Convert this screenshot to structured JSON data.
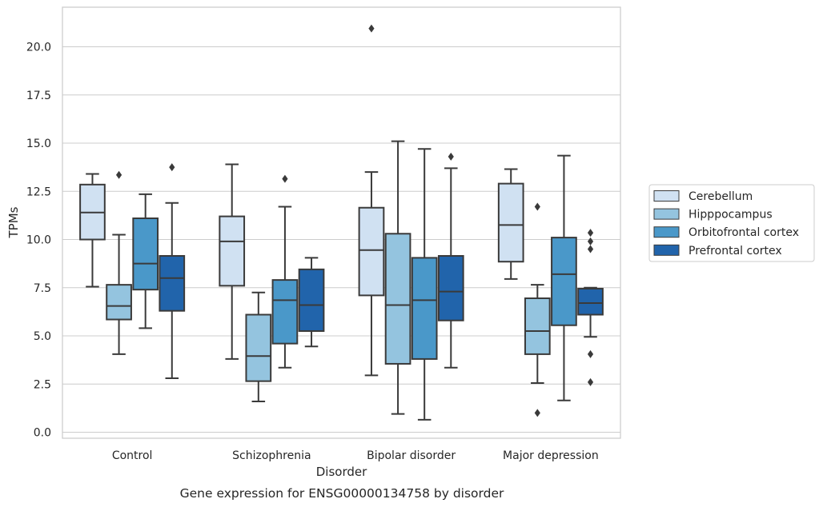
{
  "chart_data": {
    "type": "box",
    "title": "",
    "caption": "Gene expression for ENSG00000134758 by disorder",
    "xlabel": "Disorder",
    "ylabel": "TPMs",
    "ylim": [
      -0.3,
      22.0
    ],
    "yticks": [
      0.0,
      2.5,
      5.0,
      7.5,
      10.0,
      12.5,
      15.0,
      17.5,
      20.0
    ],
    "ytick_labels": [
      "0.0",
      "2.5",
      "5.0",
      "7.5",
      "10.0",
      "12.5",
      "15.0",
      "17.5",
      "20.0"
    ],
    "grid": true,
    "legend_position": "right",
    "categories": [
      "Control",
      "Schizophrenia",
      "Bipolar disorder",
      "Major depression"
    ],
    "series": [
      {
        "name": "Cerebellum",
        "color": "#d0e1f2",
        "boxes": [
          {
            "whisker_low": 7.55,
            "q1": 10.0,
            "median": 11.4,
            "q3": 12.85,
            "whisker_high": 13.4,
            "outliers": []
          },
          {
            "whisker_low": 3.8,
            "q1": 7.6,
            "median": 9.9,
            "q3": 11.2,
            "whisker_high": 13.9,
            "outliers": []
          },
          {
            "whisker_low": 2.95,
            "q1": 7.1,
            "median": 9.45,
            "q3": 11.65,
            "whisker_high": 13.5,
            "outliers": [
              20.95
            ]
          },
          {
            "whisker_low": 7.95,
            "q1": 8.85,
            "median": 10.75,
            "q3": 12.9,
            "whisker_high": 13.65,
            "outliers": []
          }
        ]
      },
      {
        "name": "Hipppocampus",
        "color": "#94c4df",
        "boxes": [
          {
            "whisker_low": 4.05,
            "q1": 5.85,
            "median": 6.55,
            "q3": 7.65,
            "whisker_high": 10.25,
            "outliers": [
              13.35
            ]
          },
          {
            "whisker_low": 1.6,
            "q1": 2.65,
            "median": 3.95,
            "q3": 6.1,
            "whisker_high": 7.25,
            "outliers": []
          },
          {
            "whisker_low": 0.95,
            "q1": 3.55,
            "median": 6.6,
            "q3": 10.3,
            "whisker_high": 15.1,
            "outliers": []
          },
          {
            "whisker_low": 2.55,
            "q1": 4.05,
            "median": 5.25,
            "q3": 6.95,
            "whisker_high": 7.65,
            "outliers": [
              11.7,
              1.0
            ]
          }
        ]
      },
      {
        "name": "Orbitofrontal cortex",
        "color": "#4a98c9",
        "boxes": [
          {
            "whisker_low": 5.4,
            "q1": 7.4,
            "median": 8.75,
            "q3": 11.1,
            "whisker_high": 12.35,
            "outliers": []
          },
          {
            "whisker_low": 3.35,
            "q1": 4.6,
            "median": 6.85,
            "q3": 7.9,
            "whisker_high": 11.7,
            "outliers": [
              13.15
            ]
          },
          {
            "whisker_low": 0.65,
            "q1": 3.8,
            "median": 6.85,
            "q3": 9.05,
            "whisker_high": 14.7,
            "outliers": []
          },
          {
            "whisker_low": 1.65,
            "q1": 5.55,
            "median": 8.2,
            "q3": 10.1,
            "whisker_high": 14.35,
            "outliers": []
          }
        ]
      },
      {
        "name": "Prefrontal cortex",
        "color": "#2164ab",
        "boxes": [
          {
            "whisker_low": 2.8,
            "q1": 6.3,
            "median": 8.0,
            "q3": 9.15,
            "whisker_high": 11.9,
            "outliers": [
              13.75
            ]
          },
          {
            "whisker_low": 4.45,
            "q1": 5.25,
            "median": 6.6,
            "q3": 8.45,
            "whisker_high": 9.05,
            "outliers": []
          },
          {
            "whisker_low": 3.35,
            "q1": 5.8,
            "median": 7.3,
            "q3": 9.15,
            "whisker_high": 13.7,
            "outliers": [
              14.3
            ]
          },
          {
            "whisker_low": 4.95,
            "q1": 6.1,
            "median": 6.7,
            "q3": 7.45,
            "whisker_high": 7.5,
            "outliers": [
              10.35,
              9.9,
              9.5,
              4.05,
              2.6
            ]
          }
        ]
      }
    ]
  }
}
